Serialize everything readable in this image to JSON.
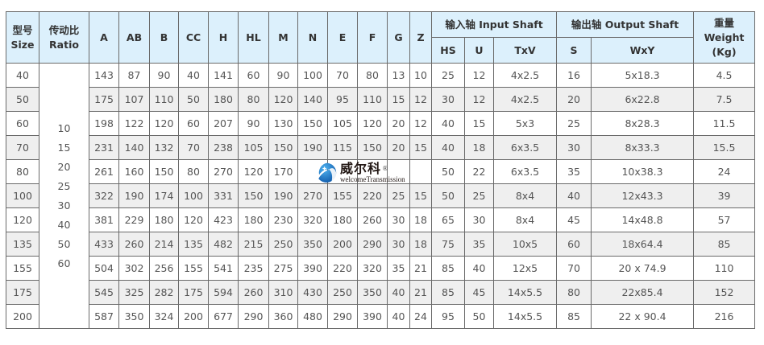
{
  "header": {
    "size": [
      "型号",
      "Size"
    ],
    "ratio": [
      "传动比",
      "Ratio"
    ],
    "dims": [
      "A",
      "AB",
      "B",
      "CC",
      "H",
      "HL",
      "M",
      "N",
      "E",
      "F",
      "G",
      "Z"
    ],
    "input_group": "输入轴 Input Shaft",
    "output_group": "输出轴 Output Shaft",
    "weight": [
      "重量",
      "Weight",
      "(Kg)"
    ],
    "input_cols": [
      "HS",
      "U",
      "TxV"
    ],
    "output_cols": [
      "S",
      "WxY"
    ]
  },
  "ratios": [
    "10",
    "15",
    "20",
    "25",
    "30",
    "40",
    "50",
    "60"
  ],
  "rows": [
    [
      "40",
      "143",
      "87",
      "90",
      "40",
      "141",
      "60",
      "90",
      "100",
      "70",
      "80",
      "13",
      "10",
      "25",
      "12",
      "4x2.5",
      "16",
      "5x18.3",
      "4.5"
    ],
    [
      "50",
      "175",
      "107",
      "110",
      "50",
      "180",
      "80",
      "120",
      "140",
      "95",
      "110",
      "15",
      "12",
      "30",
      "12",
      "4x2.5",
      "20",
      "6x22.8",
      "7.5"
    ],
    [
      "60",
      "198",
      "122",
      "120",
      "60",
      "207",
      "90",
      "130",
      "150",
      "105",
      "120",
      "20",
      "12",
      "40",
      "15",
      "5x3",
      "25",
      "8x28.3",
      "11.5"
    ],
    [
      "70",
      "231",
      "140",
      "132",
      "70",
      "238",
      "105",
      "150",
      "190",
      "115",
      "150",
      "20",
      "15",
      "40",
      "18",
      "6x3.5",
      "30",
      "8x33.3",
      "15.5"
    ],
    [
      "80",
      "261",
      "160",
      "150",
      "80",
      "270",
      "120",
      "170",
      "",
      "",
      "",
      "",
      "",
      "50",
      "22",
      "6x3.5",
      "35",
      "10x38.3",
      "24"
    ],
    [
      "100",
      "322",
      "190",
      "174",
      "100",
      "331",
      "150",
      "190",
      "270",
      "155",
      "220",
      "25",
      "15",
      "50",
      "25",
      "8x4",
      "40",
      "12x43.3",
      "39"
    ],
    [
      "120",
      "381",
      "229",
      "180",
      "120",
      "423",
      "180",
      "230",
      "320",
      "180",
      "260",
      "30",
      "18",
      "65",
      "30",
      "8x4",
      "45",
      "14x48.8",
      "57"
    ],
    [
      "135",
      "433",
      "260",
      "214",
      "135",
      "482",
      "215",
      "250",
      "350",
      "200",
      "290",
      "30",
      "18",
      "75",
      "35",
      "10x5",
      "60",
      "18x64.4",
      "85"
    ],
    [
      "155",
      "504",
      "302",
      "256",
      "155",
      "541",
      "235",
      "275",
      "390",
      "220",
      "320",
      "35",
      "21",
      "85",
      "40",
      "12x5",
      "70",
      "20 x 74.9",
      "110"
    ],
    [
      "175",
      "545",
      "325",
      "282",
      "175",
      "594",
      "260",
      "310",
      "430",
      "250",
      "350",
      "40",
      "21",
      "85",
      "45",
      "14x5.5",
      "80",
      "22x85.4",
      "152"
    ],
    [
      "200",
      "587",
      "350",
      "324",
      "200",
      "677",
      "290",
      "360",
      "480",
      "290",
      "390",
      "40",
      "24",
      "95",
      "50",
      "14x5.5",
      "85",
      "22 x 90.4",
      "216"
    ]
  ],
  "watermark": {
    "name": "威尔科",
    "sub": "welcomeTransmission",
    "mark": "®"
  },
  "colors": {
    "header_bg": "#dcf0fc",
    "alt_row": "#efefef",
    "border": "#6a6a6a",
    "logo_blue": "#1a6fc4"
  }
}
